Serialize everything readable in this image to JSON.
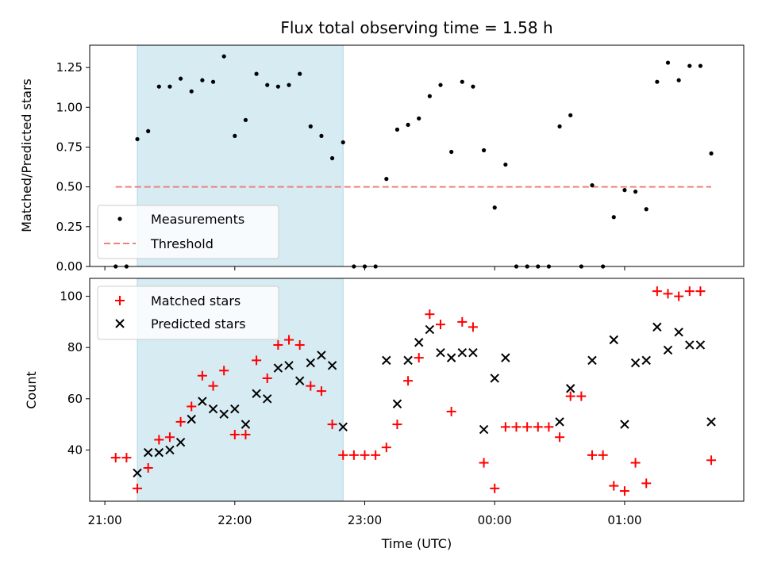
{
  "chart_data": [
    {
      "type": "scatter",
      "title": "Flux total observing time = 1.58 h",
      "ylabel": "Matched/Predicted stars",
      "ylim": [
        0.0,
        1.39
      ],
      "yticks": [
        "0.00",
        "0.25",
        "0.50",
        "0.75",
        "1.00",
        "1.25"
      ],
      "xlim": [
        "20:53",
        "01:55"
      ],
      "legend": "lower-left",
      "shaded_span": [
        "21:15",
        "22:50"
      ],
      "colors": {
        "measurements": "#000000",
        "threshold": "#f08080",
        "span": "#add8e6"
      },
      "series": [
        {
          "name": "Measurements",
          "x": [
            "21:05",
            "21:10",
            "21:15",
            "21:20",
            "21:25",
            "21:30",
            "21:35",
            "21:40",
            "21:45",
            "21:50",
            "21:55",
            "22:00",
            "22:05",
            "22:10",
            "22:15",
            "22:20",
            "22:25",
            "22:30",
            "22:35",
            "22:40",
            "22:45",
            "22:50",
            "22:55",
            "23:00",
            "23:05",
            "23:10",
            "23:15",
            "23:20",
            "23:25",
            "23:30",
            "23:35",
            "23:40",
            "23:45",
            "23:50",
            "23:55",
            "00:00",
            "00:05",
            "00:10",
            "00:15",
            "00:20",
            "00:25",
            "00:30",
            "00:35",
            "00:40",
            "00:45",
            "00:50",
            "00:55",
            "01:00",
            "01:05",
            "01:10",
            "01:15",
            "01:20",
            "01:25",
            "01:30",
            "01:35",
            "01:40"
          ],
          "y": [
            0.0,
            0.0,
            0.8,
            0.85,
            1.13,
            1.13,
            1.18,
            1.1,
            1.17,
            1.16,
            1.32,
            0.82,
            0.92,
            1.21,
            1.14,
            1.13,
            1.14,
            1.21,
            0.88,
            0.82,
            0.68,
            0.78,
            0.0,
            0.0,
            0.0,
            0.55,
            0.86,
            0.89,
            0.93,
            1.07,
            1.14,
            0.72,
            1.16,
            1.13,
            0.73,
            0.37,
            0.64,
            0.0,
            0.0,
            0.0,
            0.0,
            0.88,
            0.95,
            0.0,
            0.51,
            0.0,
            0.31,
            0.48,
            0.47,
            0.36,
            1.16,
            1.28,
            1.17,
            1.26,
            1.26,
            0.71
          ]
        },
        {
          "name": "Threshold",
          "x": [
            "21:05",
            "01:40"
          ],
          "y": [
            0.5,
            0.5
          ]
        }
      ]
    },
    {
      "type": "scatter",
      "xlabel": "Time (UTC)",
      "ylabel": "Count",
      "ylim": [
        20,
        107
      ],
      "yticks": [
        "40",
        "60",
        "80",
        "100"
      ],
      "xlim": [
        "20:53",
        "01:55"
      ],
      "xticks": [
        "21:00",
        "22:00",
        "23:00",
        "00:00",
        "01:00"
      ],
      "legend": "upper-left",
      "shaded_span": [
        "21:15",
        "22:50"
      ],
      "colors": {
        "matched": "#ff0000",
        "predicted": "#000000",
        "span": "#add8e6"
      },
      "series": [
        {
          "name": "Matched stars",
          "x": [
            "21:05",
            "21:10",
            "21:15",
            "21:20",
            "21:25",
            "21:30",
            "21:35",
            "21:40",
            "21:45",
            "21:50",
            "21:55",
            "22:00",
            "22:05",
            "22:10",
            "22:15",
            "22:20",
            "22:25",
            "22:30",
            "22:35",
            "22:40",
            "22:45",
            "22:50",
            "22:55",
            "23:00",
            "23:05",
            "23:10",
            "23:15",
            "23:20",
            "23:25",
            "23:30",
            "23:35",
            "23:40",
            "23:45",
            "23:50",
            "23:55",
            "00:00",
            "00:05",
            "00:10",
            "00:15",
            "00:20",
            "00:25",
            "00:30",
            "00:35",
            "00:40",
            "00:45",
            "00:50",
            "00:55",
            "01:00",
            "01:05",
            "01:10",
            "01:15",
            "01:20",
            "01:25",
            "01:30",
            "01:35",
            "01:40"
          ],
          "y": [
            37,
            37,
            25,
            33,
            44,
            45,
            51,
            57,
            69,
            65,
            71,
            46,
            46,
            75,
            68,
            81,
            83,
            81,
            65,
            63,
            50,
            38,
            38,
            38,
            38,
            41,
            50,
            67,
            76,
            93,
            89,
            55,
            90,
            88,
            35,
            25,
            49,
            49,
            49,
            49,
            49,
            45,
            61,
            61,
            38,
            38,
            26,
            24,
            35,
            27,
            102,
            101,
            100,
            102,
            102,
            36
          ]
        },
        {
          "name": "Predicted stars",
          "x": [
            "21:15",
            "21:20",
            "21:25",
            "21:30",
            "21:35",
            "21:40",
            "21:45",
            "21:50",
            "21:55",
            "22:00",
            "22:05",
            "22:10",
            "22:15",
            "22:20",
            "22:25",
            "22:30",
            "22:35",
            "22:40",
            "22:45",
            "22:50",
            "23:10",
            "23:15",
            "23:20",
            "23:25",
            "23:30",
            "23:35",
            "23:40",
            "23:45",
            "23:50",
            "23:55",
            "00:00",
            "00:05",
            "00:30",
            "00:35",
            "00:45",
            "00:55",
            "01:00",
            "01:05",
            "01:10",
            "01:15",
            "01:20",
            "01:25",
            "01:30",
            "01:35",
            "01:40"
          ],
          "y": [
            31,
            39,
            39,
            40,
            43,
            52,
            59,
            56,
            54,
            56,
            50,
            62,
            60,
            72,
            73,
            67,
            74,
            77,
            73,
            49,
            75,
            58,
            75,
            82,
            87,
            78,
            76,
            78,
            78,
            48,
            68,
            76,
            51,
            64,
            75,
            83,
            50,
            74,
            75,
            88,
            79,
            86,
            81,
            81,
            51
          ]
        }
      ]
    }
  ]
}
